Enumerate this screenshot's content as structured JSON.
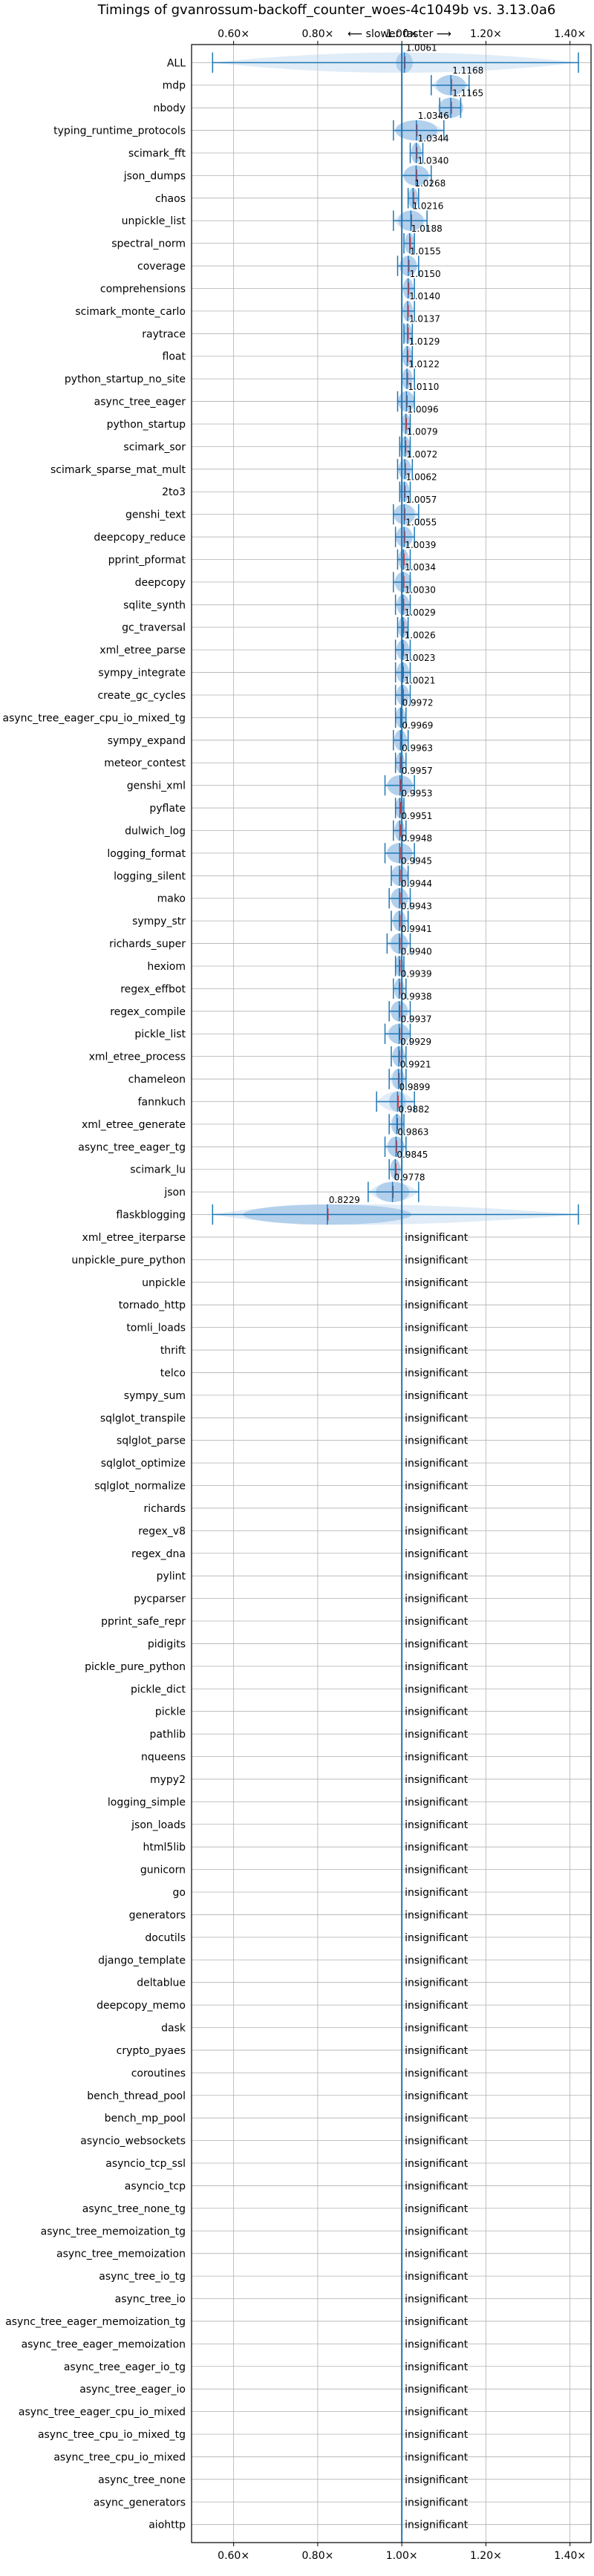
{
  "chart_data": {
    "type": "violin",
    "title": "Timings of gvanrossum-backoff_counter_woes-4c1049b vs. 3.13.0a6",
    "subtitle": "⟵ slower   faster ⟶",
    "xlim": [
      0.5,
      1.45
    ],
    "xticks": [
      0.6,
      0.8,
      1.0,
      1.2,
      1.4
    ],
    "xtick_labels": [
      "0.60×",
      "0.80×",
      "1.00×",
      "1.20×",
      "1.40×"
    ],
    "grid": true,
    "reference_line": 1.0,
    "insignificant_label": "insignificant",
    "series": [
      {
        "name": "ALL",
        "value": 1.0061,
        "label": "1.0061",
        "lo": 0.55,
        "hi": 1.42,
        "spread": 0.02
      },
      {
        "name": "mdp",
        "value": 1.1168,
        "label": "1.1168",
        "lo": 1.07,
        "hi": 1.16,
        "spread": 0.035
      },
      {
        "name": "nbody",
        "value": 1.1165,
        "label": "1.1165",
        "lo": 1.09,
        "hi": 1.14,
        "spread": 0.03
      },
      {
        "name": "typing_runtime_protocols",
        "value": 1.0346,
        "label": "1.0346",
        "lo": 0.98,
        "hi": 1.1,
        "spread": 0.05
      },
      {
        "name": "scimark_fft",
        "value": 1.0344,
        "label": "1.0344",
        "lo": 1.02,
        "hi": 1.05,
        "spread": 0.012
      },
      {
        "name": "json_dumps",
        "value": 1.034,
        "label": "1.0340",
        "lo": 1.0,
        "hi": 1.07,
        "spread": 0.03
      },
      {
        "name": "chaos",
        "value": 1.0268,
        "label": "1.0268",
        "lo": 1.015,
        "hi": 1.04,
        "spread": 0.012
      },
      {
        "name": "unpickle_list",
        "value": 1.0216,
        "label": "1.0216",
        "lo": 0.98,
        "hi": 1.06,
        "spread": 0.03
      },
      {
        "name": "spectral_norm",
        "value": 1.0188,
        "label": "1.0188",
        "lo": 1.005,
        "hi": 1.03,
        "spread": 0.012
      },
      {
        "name": "coverage",
        "value": 1.0155,
        "label": "1.0155",
        "lo": 0.99,
        "hi": 1.04,
        "spread": 0.02
      },
      {
        "name": "comprehensions",
        "value": 1.015,
        "label": "1.0150",
        "lo": 1.0,
        "hi": 1.03,
        "spread": 0.012
      },
      {
        "name": "scimark_monte_carlo",
        "value": 1.014,
        "label": "1.0140",
        "lo": 1.0,
        "hi": 1.03,
        "spread": 0.012
      },
      {
        "name": "raytrace",
        "value": 1.0137,
        "label": "1.0137",
        "lo": 1.005,
        "hi": 1.025,
        "spread": 0.01
      },
      {
        "name": "float",
        "value": 1.0129,
        "label": "1.0129",
        "lo": 1.0,
        "hi": 1.025,
        "spread": 0.012
      },
      {
        "name": "python_startup_no_site",
        "value": 1.0122,
        "label": "1.0122",
        "lo": 1.0,
        "hi": 1.03,
        "spread": 0.012
      },
      {
        "name": "async_tree_eager",
        "value": 1.011,
        "label": "1.0110",
        "lo": 0.99,
        "hi": 1.03,
        "spread": 0.02
      },
      {
        "name": "python_startup",
        "value": 1.0096,
        "label": "1.0096",
        "lo": 1.0,
        "hi": 1.02,
        "spread": 0.01
      },
      {
        "name": "scimark_sor",
        "value": 1.0079,
        "label": "1.0079",
        "lo": 0.995,
        "hi": 1.02,
        "spread": 0.012
      },
      {
        "name": "scimark_sparse_mat_mult",
        "value": 1.0072,
        "label": "1.0072",
        "lo": 0.99,
        "hi": 1.025,
        "spread": 0.015
      },
      {
        "name": "2to3",
        "value": 1.0062,
        "label": "1.0062",
        "lo": 0.995,
        "hi": 1.02,
        "spread": 0.012
      },
      {
        "name": "genshi_text",
        "value": 1.0057,
        "label": "1.0057",
        "lo": 0.98,
        "hi": 1.04,
        "spread": 0.025
      },
      {
        "name": "deepcopy_reduce",
        "value": 1.0055,
        "label": "1.0055",
        "lo": 0.985,
        "hi": 1.03,
        "spread": 0.02
      },
      {
        "name": "pprint_pformat",
        "value": 1.0039,
        "label": "1.0039",
        "lo": 0.99,
        "hi": 1.02,
        "spread": 0.012
      },
      {
        "name": "deepcopy",
        "value": 1.0034,
        "label": "1.0034",
        "lo": 0.98,
        "hi": 1.02,
        "spread": 0.02
      },
      {
        "name": "sqlite_synth",
        "value": 1.003,
        "label": "1.0030",
        "lo": 0.985,
        "hi": 1.02,
        "spread": 0.015
      },
      {
        "name": "gc_traversal",
        "value": 1.0029,
        "label": "1.0029",
        "lo": 0.99,
        "hi": 1.015,
        "spread": 0.012
      },
      {
        "name": "xml_etree_parse",
        "value": 1.0026,
        "label": "1.0026",
        "lo": 0.985,
        "hi": 1.02,
        "spread": 0.015
      },
      {
        "name": "sympy_integrate",
        "value": 1.0023,
        "label": "1.0023",
        "lo": 0.985,
        "hi": 1.02,
        "spread": 0.015
      },
      {
        "name": "create_gc_cycles",
        "value": 1.0021,
        "label": "1.0021",
        "lo": 0.985,
        "hi": 1.02,
        "spread": 0.015
      },
      {
        "name": "async_tree_eager_cpu_io_mixed_tg",
        "value": 0.9972,
        "label": "0.9972",
        "lo": 0.985,
        "hi": 1.01,
        "spread": 0.012
      },
      {
        "name": "sympy_expand",
        "value": 0.9969,
        "label": "0.9969",
        "lo": 0.98,
        "hi": 1.015,
        "spread": 0.015
      },
      {
        "name": "meteor_contest",
        "value": 0.9963,
        "label": "0.9963",
        "lo": 0.985,
        "hi": 1.01,
        "spread": 0.01
      },
      {
        "name": "genshi_xml",
        "value": 0.9957,
        "label": "0.9957",
        "lo": 0.96,
        "hi": 1.03,
        "spread": 0.03
      },
      {
        "name": "pyflate",
        "value": 0.9953,
        "label": "0.9953",
        "lo": 0.985,
        "hi": 1.005,
        "spread": 0.01
      },
      {
        "name": "dulwich_log",
        "value": 0.9951,
        "label": "0.9951",
        "lo": 0.98,
        "hi": 1.01,
        "spread": 0.012
      },
      {
        "name": "logging_format",
        "value": 0.9948,
        "label": "0.9948",
        "lo": 0.96,
        "hi": 1.03,
        "spread": 0.03
      },
      {
        "name": "logging_silent",
        "value": 0.9945,
        "label": "0.9945",
        "lo": 0.975,
        "hi": 1.015,
        "spread": 0.02
      },
      {
        "name": "mako",
        "value": 0.9944,
        "label": "0.9944",
        "lo": 0.97,
        "hi": 1.02,
        "spread": 0.02
      },
      {
        "name": "sympy_str",
        "value": 0.9943,
        "label": "0.9943",
        "lo": 0.975,
        "hi": 1.015,
        "spread": 0.015
      },
      {
        "name": "richards_super",
        "value": 0.9941,
        "label": "0.9941",
        "lo": 0.965,
        "hi": 1.02,
        "spread": 0.02
      },
      {
        "name": "hexiom",
        "value": 0.994,
        "label": "0.9940",
        "lo": 0.985,
        "hi": 1.005,
        "spread": 0.01
      },
      {
        "name": "regex_effbot",
        "value": 0.9939,
        "label": "0.9939",
        "lo": 0.98,
        "hi": 1.01,
        "spread": 0.012
      },
      {
        "name": "regex_compile",
        "value": 0.9938,
        "label": "0.9938",
        "lo": 0.97,
        "hi": 1.02,
        "spread": 0.02
      },
      {
        "name": "pickle_list",
        "value": 0.9937,
        "label": "0.9937",
        "lo": 0.96,
        "hi": 1.02,
        "spread": 0.025
      },
      {
        "name": "xml_etree_process",
        "value": 0.9929,
        "label": "0.9929",
        "lo": 0.975,
        "hi": 1.01,
        "spread": 0.015
      },
      {
        "name": "chameleon",
        "value": 0.9921,
        "label": "0.9921",
        "lo": 0.97,
        "hi": 1.01,
        "spread": 0.015
      },
      {
        "name": "fannkuch",
        "value": 0.9899,
        "label": "0.9899",
        "lo": 0.94,
        "hi": 1.03,
        "spread": 0.02
      },
      {
        "name": "xml_etree_generate",
        "value": 0.9882,
        "label": "0.9882",
        "lo": 0.97,
        "hi": 1.005,
        "spread": 0.012
      },
      {
        "name": "async_tree_eager_tg",
        "value": 0.9863,
        "label": "0.9863",
        "lo": 0.96,
        "hi": 1.01,
        "spread": 0.02
      },
      {
        "name": "scimark_lu",
        "value": 0.9845,
        "label": "0.9845",
        "lo": 0.97,
        "hi": 1.0,
        "spread": 0.012
      },
      {
        "name": "json",
        "value": 0.9778,
        "label": "0.9778",
        "lo": 0.92,
        "hi": 1.04,
        "spread": 0.04
      },
      {
        "name": "flaskblogging",
        "value": 0.8229,
        "label": "0.8229",
        "lo": 0.55,
        "hi": 1.42,
        "spread": 0.2
      },
      {
        "name": "xml_etree_iterparse",
        "insignificant": true
      },
      {
        "name": "unpickle_pure_python",
        "insignificant": true
      },
      {
        "name": "unpickle",
        "insignificant": true
      },
      {
        "name": "tornado_http",
        "insignificant": true
      },
      {
        "name": "tomli_loads",
        "insignificant": true
      },
      {
        "name": "thrift",
        "insignificant": true
      },
      {
        "name": "telco",
        "insignificant": true
      },
      {
        "name": "sympy_sum",
        "insignificant": true
      },
      {
        "name": "sqlglot_transpile",
        "insignificant": true
      },
      {
        "name": "sqlglot_parse",
        "insignificant": true
      },
      {
        "name": "sqlglot_optimize",
        "insignificant": true
      },
      {
        "name": "sqlglot_normalize",
        "insignificant": true
      },
      {
        "name": "richards",
        "insignificant": true
      },
      {
        "name": "regex_v8",
        "insignificant": true
      },
      {
        "name": "regex_dna",
        "insignificant": true
      },
      {
        "name": "pylint",
        "insignificant": true
      },
      {
        "name": "pycparser",
        "insignificant": true
      },
      {
        "name": "pprint_safe_repr",
        "insignificant": true
      },
      {
        "name": "pidigits",
        "insignificant": true
      },
      {
        "name": "pickle_pure_python",
        "insignificant": true
      },
      {
        "name": "pickle_dict",
        "insignificant": true
      },
      {
        "name": "pickle",
        "insignificant": true
      },
      {
        "name": "pathlib",
        "insignificant": true
      },
      {
        "name": "nqueens",
        "insignificant": true
      },
      {
        "name": "mypy2",
        "insignificant": true
      },
      {
        "name": "logging_simple",
        "insignificant": true
      },
      {
        "name": "json_loads",
        "insignificant": true
      },
      {
        "name": "html5lib",
        "insignificant": true
      },
      {
        "name": "gunicorn",
        "insignificant": true
      },
      {
        "name": "go",
        "insignificant": true
      },
      {
        "name": "generators",
        "insignificant": true
      },
      {
        "name": "docutils",
        "insignificant": true
      },
      {
        "name": "django_template",
        "insignificant": true
      },
      {
        "name": "deltablue",
        "insignificant": true
      },
      {
        "name": "deepcopy_memo",
        "insignificant": true
      },
      {
        "name": "dask",
        "insignificant": true
      },
      {
        "name": "crypto_pyaes",
        "insignificant": true
      },
      {
        "name": "coroutines",
        "insignificant": true
      },
      {
        "name": "bench_thread_pool",
        "insignificant": true
      },
      {
        "name": "bench_mp_pool",
        "insignificant": true
      },
      {
        "name": "asyncio_websockets",
        "insignificant": true
      },
      {
        "name": "asyncio_tcp_ssl",
        "insignificant": true
      },
      {
        "name": "asyncio_tcp",
        "insignificant": true
      },
      {
        "name": "async_tree_none_tg",
        "insignificant": true
      },
      {
        "name": "async_tree_memoization_tg",
        "insignificant": true
      },
      {
        "name": "async_tree_memoization",
        "insignificant": true
      },
      {
        "name": "async_tree_io_tg",
        "insignificant": true
      },
      {
        "name": "async_tree_io",
        "insignificant": true
      },
      {
        "name": "async_tree_eager_memoization_tg",
        "insignificant": true
      },
      {
        "name": "async_tree_eager_memoization",
        "insignificant": true
      },
      {
        "name": "async_tree_eager_io_tg",
        "insignificant": true
      },
      {
        "name": "async_tree_eager_io",
        "insignificant": true
      },
      {
        "name": "async_tree_eager_cpu_io_mixed",
        "insignificant": true
      },
      {
        "name": "async_tree_cpu_io_mixed_tg",
        "insignificant": true
      },
      {
        "name": "async_tree_cpu_io_mixed",
        "insignificant": true
      },
      {
        "name": "async_tree_none",
        "insignificant": true
      },
      {
        "name": "async_generators",
        "insignificant": true
      },
      {
        "name": "aiohttp",
        "insignificant": true
      }
    ],
    "colors": {
      "violin": "#a6c8e8",
      "median": "#1f77b4",
      "errorbar": "#1f77b4",
      "mean": "#d62728",
      "grid": "#b0b0b0",
      "axis": "#000000"
    }
  }
}
